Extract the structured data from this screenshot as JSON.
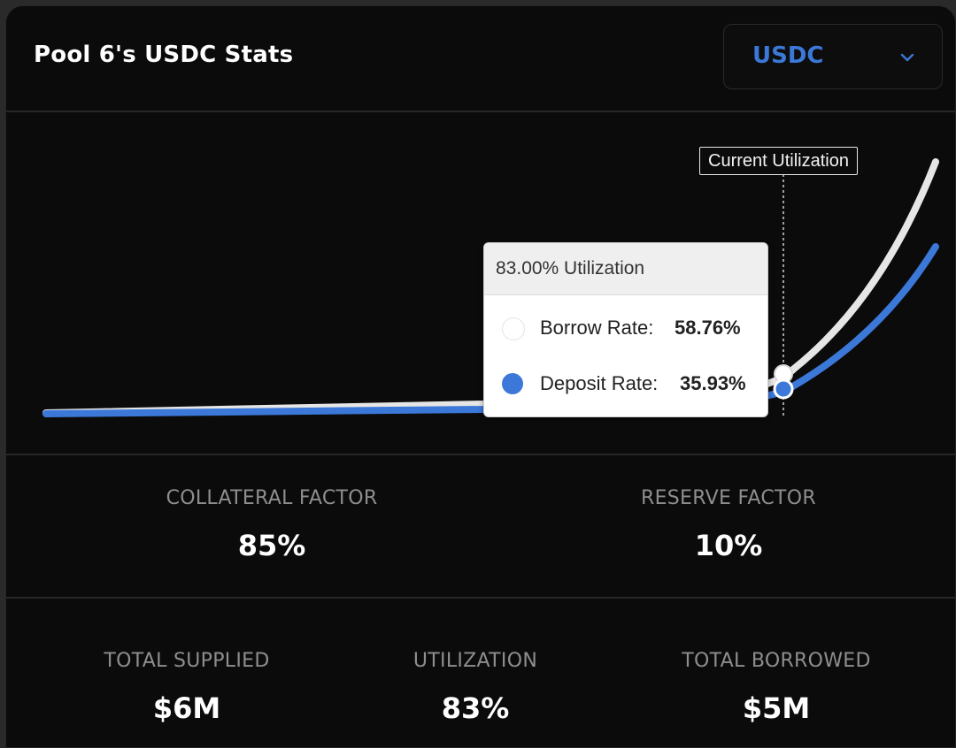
{
  "header": {
    "title": "Pool 6's USDC Stats",
    "asset_select": {
      "selected": "USDC",
      "icon": "chevron-down-icon",
      "accent_color": "#3b78d8"
    }
  },
  "chart": {
    "current_utilization_label": "Current Utilization",
    "borrow_color": "#e6e6e6",
    "deposit_color": "#3b78d8",
    "tooltip": {
      "title": "83.00% Utilization",
      "rows": [
        {
          "name": "Borrow Rate:",
          "value": "58.76%",
          "dot_color": "#ffffff"
        },
        {
          "name": "Deposit Rate:",
          "value": "35.93%",
          "dot_color": "#3b78d8"
        }
      ]
    }
  },
  "chart_data": {
    "type": "line",
    "current_utilization": 83,
    "series": [
      {
        "name": "Borrow Rate",
        "color": "#e6e6e6",
        "points": [
          [
            0,
            0
          ],
          [
            10,
            1.5
          ],
          [
            20,
            3
          ],
          [
            30,
            4.5
          ],
          [
            40,
            6
          ],
          [
            50,
            7.5
          ],
          [
            60,
            9
          ],
          [
            70,
            10.5
          ],
          [
            80,
            12
          ],
          [
            83,
            58.76
          ],
          [
            90,
            200
          ],
          [
            100,
            350
          ]
        ]
      },
      {
        "name": "Deposit Rate",
        "color": "#3b78d8",
        "points": [
          [
            0,
            0
          ],
          [
            10,
            0.4
          ],
          [
            20,
            0.9
          ],
          [
            30,
            1.5
          ],
          [
            40,
            2.2
          ],
          [
            50,
            3
          ],
          [
            60,
            3.9
          ],
          [
            70,
            4.9
          ],
          [
            80,
            6
          ],
          [
            83,
            35.93
          ],
          [
            90,
            110
          ],
          [
            100,
            245
          ]
        ]
      }
    ]
  },
  "stats": {
    "collateral_factor": {
      "label": "COLLATERAL FACTOR",
      "value": "85%"
    },
    "reserve_factor": {
      "label": "RESERVE FACTOR",
      "value": "10%"
    },
    "total_supplied": {
      "label": "TOTAL SUPPLIED",
      "value": "$6M"
    },
    "utilization": {
      "label": "UTILIZATION",
      "value": "83%"
    },
    "total_borrowed": {
      "label": "TOTAL BORROWED",
      "value": "$5M"
    }
  }
}
